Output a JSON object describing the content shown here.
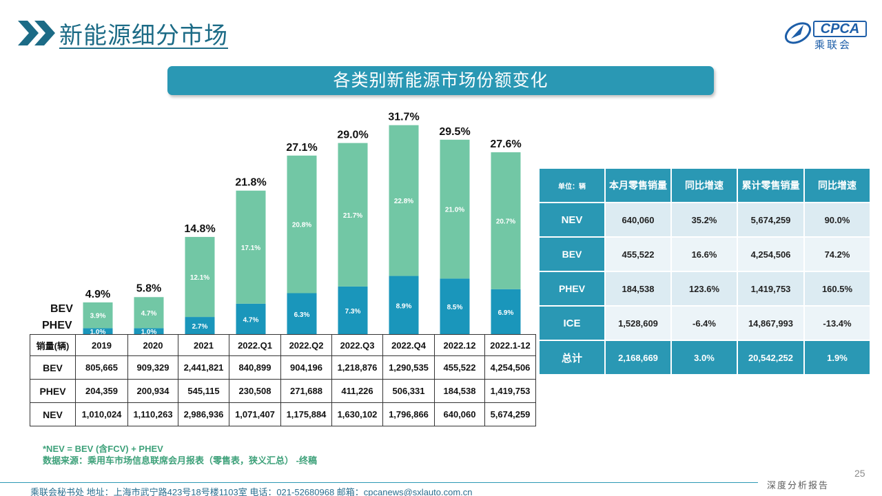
{
  "header": {
    "title": "新能源细分市场",
    "logo_text": "CPCA",
    "logo_sub": "乘联会"
  },
  "banner": {
    "title": "各类别新能源市场份额变化"
  },
  "chart_labels": {
    "bev": "BEV",
    "phev": "PHEV"
  },
  "chart_data": {
    "type": "bar",
    "stacked": true,
    "categories": [
      "2019",
      "2020",
      "2021",
      "2022.Q1",
      "2022.Q2",
      "2022.Q3",
      "2022.Q4",
      "2022.12",
      "2022.1-12"
    ],
    "series": [
      {
        "name": "PHEV",
        "values": [
          1.0,
          1.0,
          2.7,
          4.7,
          6.3,
          7.3,
          8.9,
          8.5,
          6.9
        ],
        "labels": [
          "1.0%",
          "1.0%",
          "2.7%",
          "4.7%",
          "6.3%",
          "7.3%",
          "8.9%",
          "8.5%",
          "6.9%"
        ],
        "color": "#1a96bb"
      },
      {
        "name": "BEV",
        "values": [
          3.9,
          4.7,
          12.1,
          17.1,
          20.8,
          21.7,
          22.8,
          21.0,
          20.7
        ],
        "labels": [
          "3.9%",
          "4.7%",
          "12.1%",
          "17.1%",
          "20.8%",
          "21.7%",
          "22.8%",
          "21.0%",
          "20.7%"
        ],
        "color": "#72c7a5"
      }
    ],
    "totals": [
      4.9,
      5.8,
      14.8,
      21.8,
      27.1,
      29.0,
      31.7,
      29.5,
      27.6
    ],
    "total_labels": [
      "4.9%",
      "5.8%",
      "14.8%",
      "21.8%",
      "27.1%",
      "29.0%",
      "31.7%",
      "29.5%",
      "27.6%"
    ],
    "ylim": [
      0,
      35
    ]
  },
  "sales_table": {
    "header_label": "销量(辆)",
    "columns": [
      "2019",
      "2020",
      "2021",
      "2022.Q1",
      "2022.Q2",
      "2022.Q3",
      "2022.Q4",
      "2022.12",
      "2022.1-12"
    ],
    "rows": [
      {
        "label": "BEV",
        "values": [
          "805,665",
          "909,329",
          "2,441,821",
          "840,899",
          "904,196",
          "1,218,876",
          "1,290,535",
          "455,522",
          "4,254,506"
        ]
      },
      {
        "label": "PHEV",
        "values": [
          "204,359",
          "200,934",
          "545,115",
          "230,508",
          "271,688",
          "411,226",
          "506,331",
          "184,538",
          "1,419,753"
        ]
      },
      {
        "label": "NEV",
        "values": [
          "1,010,024",
          "1,110,263",
          "2,986,936",
          "1,071,407",
          "1,175,884",
          "1,630,102",
          "1,796,866",
          "640,060",
          "5,674,259"
        ]
      }
    ]
  },
  "notes": {
    "line1": "*NEV = BEV (含FCV) + PHEV",
    "line2": "数据来源：乘用车市场信息联席会月报表（零售表，狭义汇总） -终稿"
  },
  "summary_table": {
    "headers": [
      "单位：辆",
      "本月零售销量",
      "同比增速",
      "累计零售销量",
      "同比增速"
    ],
    "rows": [
      {
        "label": "NEV",
        "values": [
          "640,060",
          "35.2%",
          "5,674,259",
          "90.0%"
        ]
      },
      {
        "label": "BEV",
        "values": [
          "455,522",
          "16.6%",
          "4,254,506",
          "74.2%"
        ]
      },
      {
        "label": "PHEV",
        "values": [
          "184,538",
          "123.6%",
          "1,419,753",
          "160.5%"
        ]
      },
      {
        "label": "ICE",
        "values": [
          "1,528,609",
          "-6.4%",
          "14,867,993",
          "-13.4%"
        ]
      },
      {
        "label": "总计",
        "values": [
          "2,168,669",
          "3.0%",
          "20,542,252",
          "1.9%"
        ]
      }
    ]
  },
  "footer": {
    "page_number": "25",
    "tagline": "深度分析报告",
    "contact": "乘联会秘书处   地址：上海市武宁路423号18号楼1103室  电话：021-52680968   邮箱：cpcanews@sxlauto.com.cn"
  }
}
